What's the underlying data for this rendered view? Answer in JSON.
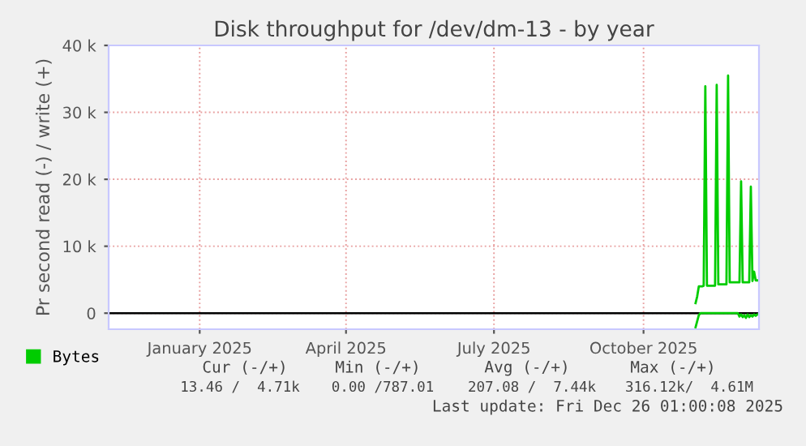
{
  "chart_data": {
    "type": "line",
    "title": "Disk throughput for /dev/dm-13 - by year",
    "ylabel": "Pr second read (-) / write (+)",
    "series": [
      {
        "name": "Bytes",
        "color": "#00cc00",
        "x": [
          "2025-11-17",
          "2025-11-18",
          "2025-11-19",
          "2025-11-21",
          "2025-11-22",
          "2025-11-23",
          "2025-11-24",
          "2025-11-29",
          "2025-11-30",
          "2025-12-01",
          "2025-12-06",
          "2025-12-07",
          "2025-12-08",
          "2025-12-14",
          "2025-12-15",
          "2025-12-16",
          "2025-12-20",
          "2025-12-21",
          "2025-12-22",
          "2025-12-23",
          "2025-12-24",
          "2025-12-25"
        ],
        "values": [
          1500,
          2500,
          4000,
          4000,
          4100,
          33900,
          4100,
          4100,
          34100,
          4300,
          4300,
          35500,
          4600,
          4600,
          19700,
          4600,
          4600,
          18900,
          4800,
          6200,
          4900,
          4900
        ]
      },
      {
        "color": "#00cc00",
        "x": [
          "2025-11-17",
          "2025-11-19",
          "2025-11-20",
          "2025-12-13",
          "2025-12-14",
          "2025-12-15",
          "2025-12-16",
          "2025-12-17",
          "2025-12-18",
          "2025-12-19",
          "2025-12-20",
          "2025-12-21",
          "2025-12-22",
          "2025-12-23",
          "2025-12-24",
          "2025-12-25"
        ],
        "values": [
          -2100,
          -300,
          0,
          0,
          -500,
          -200,
          -600,
          -300,
          -700,
          -200,
          -600,
          -300,
          -500,
          -200,
          -400,
          -200
        ]
      }
    ],
    "xlim": [
      "2024-11-21",
      "2025-12-26"
    ],
    "xticks": [
      {
        "value": "2025-01-16",
        "label": "January 2025"
      },
      {
        "value": "2025-04-16",
        "label": "April 2025"
      },
      {
        "value": "2025-07-16",
        "label": "July 2025"
      },
      {
        "value": "2025-10-16",
        "label": "October 2025"
      }
    ],
    "ylim": [
      -2400,
      40000
    ],
    "yticks": [
      0,
      {
        "value": 10000,
        "label": "10 k"
      },
      {
        "value": 20000,
        "label": "20 k"
      },
      {
        "value": 30000,
        "label": "30 k"
      },
      {
        "value": 40000,
        "label": "40 k"
      }
    ],
    "ref_lines": [
      {
        "axis": "y",
        "value": 0,
        "color": "#000000"
      }
    ],
    "grid": true,
    "legend": "bottom",
    "annotations": [
      "Cur (-/+)",
      "Min (-/+)",
      "Avg (-/+)",
      "Max (-/+)",
      "13.46 /  4.71k",
      "0.00 /787.01",
      "207.08 /  7.44k",
      "316.12k/  4.61M",
      "Last update: Fri Dec 26 01:00:08 2025"
    ]
  }
}
